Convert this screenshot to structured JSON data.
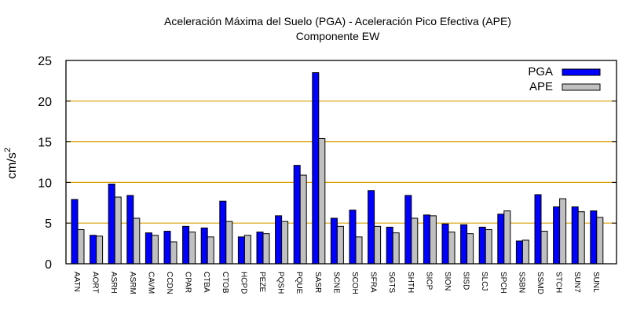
{
  "chart_data": {
    "type": "bar",
    "title": "Aceleración Máxima del Suelo (PGA) -  Aceleración Pico Efectiva (APE)",
    "subtitle": "Componente EW",
    "xlabel": "",
    "ylabel": "cm/s",
    "ylabel_sup": "2",
    "ylim": [
      0,
      25
    ],
    "yticks": [
      "0",
      "5",
      "10",
      "15",
      "20",
      "25"
    ],
    "grid": "horizontal",
    "legend_position": "top-right",
    "categories": [
      "AATN",
      "AORT",
      "ASRH",
      "ASRM",
      "CAVM",
      "CCDN",
      "CPAR",
      "CTBA",
      "CTOB",
      "HCPD",
      "PEZE",
      "PQSH",
      "PQUE",
      "SASR",
      "SCNE",
      "SCOH",
      "SFRA",
      "SGTS",
      "SHTH",
      "SICP",
      "SION",
      "SISD",
      "SLCJ",
      "SPCH",
      "SSBN",
      "SSMD",
      "STCH",
      "SUN7",
      "SUNL"
    ],
    "series": [
      {
        "name": "PGA",
        "color": "#0000ff",
        "values": [
          7.9,
          3.5,
          9.8,
          8.4,
          3.8,
          4.0,
          4.6,
          4.4,
          7.7,
          3.3,
          3.9,
          5.9,
          12.1,
          23.5,
          5.6,
          6.6,
          9.0,
          4.5,
          8.4,
          6.0,
          4.9,
          4.8,
          4.5,
          6.1,
          2.8,
          8.5,
          7.0,
          7.0,
          6.5
        ]
      },
      {
        "name": "APE",
        "color": "#c0c0c0",
        "values": [
          4.2,
          3.4,
          8.2,
          5.6,
          3.5,
          2.7,
          3.9,
          3.3,
          5.2,
          3.5,
          3.7,
          5.2,
          10.9,
          15.4,
          4.6,
          3.3,
          4.6,
          3.8,
          5.6,
          5.9,
          3.9,
          3.7,
          4.2,
          6.5,
          2.9,
          4.0,
          8.0,
          6.4,
          5.7
        ]
      }
    ]
  }
}
